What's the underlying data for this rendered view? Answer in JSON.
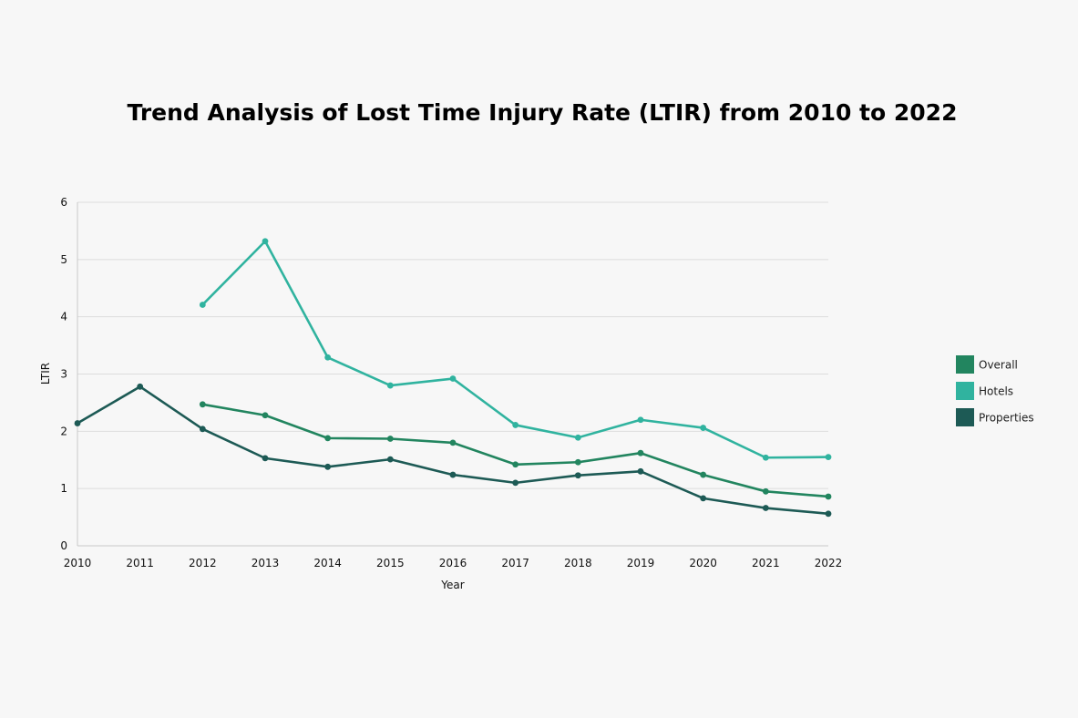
{
  "chart_data": {
    "type": "line",
    "title": "Trend Analysis of Lost Time Injury Rate (LTIR) from 2010 to 2022",
    "xlabel": "Year",
    "ylabel": "LTIR",
    "ylim": [
      0,
      6
    ],
    "yticks": [
      "0",
      "1",
      "2",
      "3",
      "4",
      "5",
      "6"
    ],
    "grid": true,
    "legend_position": "right",
    "categories": [
      "2010",
      "2011",
      "2012",
      "2013",
      "2014",
      "2015",
      "2016",
      "2017",
      "2018",
      "2019",
      "2020",
      "2021",
      "2022"
    ],
    "series": [
      {
        "name": "Overall",
        "color": "#22855f",
        "values": [
          null,
          null,
          2.47,
          2.28,
          1.88,
          1.87,
          1.8,
          1.42,
          1.46,
          1.62,
          1.24,
          0.95,
          0.86
        ]
      },
      {
        "name": "Hotels",
        "color": "#30b39f",
        "values": [
          null,
          null,
          4.21,
          5.32,
          3.29,
          2.8,
          2.92,
          2.11,
          1.89,
          2.2,
          2.06,
          1.54,
          1.55
        ]
      },
      {
        "name": "Properties",
        "color": "#1d5a55",
        "values": [
          2.14,
          2.78,
          2.04,
          1.53,
          1.38,
          1.51,
          1.24,
          1.1,
          1.23,
          1.3,
          0.83,
          0.66,
          0.56
        ]
      }
    ]
  }
}
